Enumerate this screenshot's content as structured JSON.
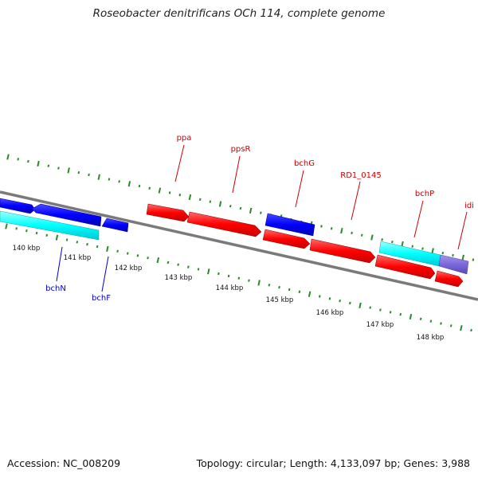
{
  "title": "Roseobacter denitrificans OCh 114, complete genome",
  "footer": {
    "accession": "Accession: NC_008209",
    "topology": "Topology: circular; Length: 4,133,097 bp; Genes: 3,988"
  },
  "colors": {
    "backbone": "#808080",
    "tick": "#2a8a2a",
    "forward_gene": "#ff0000",
    "reverse_gene": "#0000ff",
    "cyan_gene": "#00ffff",
    "purple_gene": "#7b68d9",
    "label_red": "#cc0000",
    "label_blue": "#0000cc"
  },
  "kbp_labels": [
    "140 kbp",
    "141 kbp",
    "142 kbp",
    "143 kbp",
    "144 kbp",
    "145 kbp",
    "146 kbp",
    "147 kbp",
    "148 kbp"
  ],
  "gene_labels": [
    {
      "text": "ppa",
      "color": "red"
    },
    {
      "text": "ppsR",
      "color": "red"
    },
    {
      "text": "bchG",
      "color": "red"
    },
    {
      "text": "RD1_0145",
      "color": "red"
    },
    {
      "text": "bchP",
      "color": "red"
    },
    {
      "text": "idi",
      "color": "red"
    },
    {
      "text": "bchN",
      "color": "blue"
    },
    {
      "text": "bchF",
      "color": "blue"
    }
  ]
}
